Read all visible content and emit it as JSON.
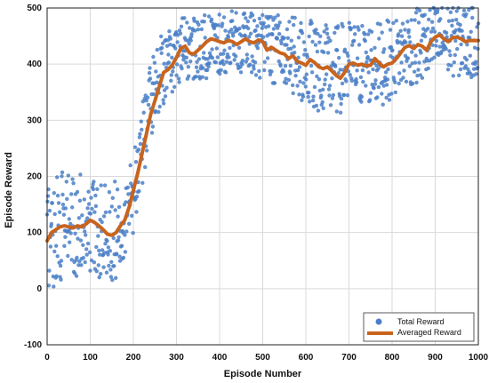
{
  "chart_data": {
    "type": "scatter",
    "title": "",
    "xlabel": "Episode Number",
    "ylabel": "Episode Reward",
    "xlim": [
      0,
      1000
    ],
    "ylim": [
      -100,
      500
    ],
    "xticks": [
      0,
      100,
      200,
      300,
      400,
      500,
      600,
      700,
      800,
      900,
      1000
    ],
    "yticks": [
      -100,
      0,
      100,
      200,
      300,
      400,
      500
    ],
    "grid": true,
    "legend_position": "bottom-right",
    "series": [
      {
        "name": "Total Reward",
        "kind": "scatter",
        "color": "#4a7fc7",
        "trend_x": [
          0,
          20,
          40,
          60,
          80,
          100,
          120,
          140,
          160,
          180,
          200,
          210,
          220,
          230,
          240,
          250,
          260,
          280,
          300,
          320,
          340,
          360,
          380,
          400,
          420,
          440,
          460,
          480,
          500,
          520,
          540,
          560,
          580,
          600,
          620,
          640,
          660,
          680,
          700,
          720,
          740,
          760,
          780,
          800,
          820,
          840,
          860,
          880,
          900,
          920,
          940,
          960,
          980,
          1000
        ],
        "trend_y": [
          92,
          108,
          112,
          110,
          112,
          118,
          112,
          95,
          105,
          135,
          175,
          215,
          255,
          300,
          335,
          365,
          385,
          395,
          415,
          425,
          428,
          430,
          432,
          438,
          440,
          438,
          440,
          435,
          432,
          428,
          425,
          418,
          412,
          405,
          398,
          392,
          385,
          392,
          400,
          398,
          402,
          400,
          402,
          410,
          420,
          428,
          432,
          435,
          442,
          445,
          443,
          440,
          440,
          440
        ],
        "spread": [
          75,
          75,
          72,
          70,
          70,
          70,
          70,
          70,
          65,
          55,
          55,
          55,
          55,
          55,
          55,
          50,
          50,
          50,
          45,
          45,
          42,
          42,
          42,
          42,
          42,
          42,
          42,
          42,
          45,
          48,
          50,
          52,
          55,
          55,
          58,
          60,
          60,
          60,
          58,
          58,
          55,
          55,
          55,
          52,
          50,
          50,
          50,
          50,
          48,
          48,
          48,
          48,
          48,
          48
        ],
        "count": 1000,
        "max": 500
      },
      {
        "name": "Averaged Reward",
        "kind": "line",
        "color": "#c8641e",
        "x": [
          0,
          10,
          20,
          30,
          40,
          50,
          60,
          70,
          80,
          90,
          100,
          110,
          120,
          130,
          140,
          150,
          160,
          170,
          180,
          190,
          200,
          210,
          220,
          230,
          240,
          250,
          260,
          270,
          280,
          290,
          300,
          310,
          320,
          330,
          340,
          350,
          360,
          370,
          380,
          390,
          400,
          410,
          420,
          430,
          440,
          450,
          460,
          470,
          480,
          490,
          500,
          510,
          520,
          530,
          540,
          550,
          560,
          570,
          580,
          590,
          600,
          610,
          620,
          630,
          640,
          650,
          660,
          670,
          680,
          690,
          700,
          710,
          720,
          730,
          740,
          750,
          760,
          770,
          780,
          790,
          800,
          810,
          820,
          830,
          840,
          850,
          860,
          870,
          880,
          890,
          900,
          910,
          920,
          930,
          940,
          950,
          960,
          970,
          980,
          990,
          1000
        ],
        "y": [
          85,
          100,
          105,
          110,
          112,
          110,
          108,
          112,
          110,
          115,
          122,
          118,
          112,
          105,
          97,
          95,
          100,
          112,
          122,
          145,
          175,
          205,
          240,
          275,
          310,
          335,
          360,
          385,
          390,
          398,
          412,
          428,
          432,
          420,
          418,
          425,
          432,
          440,
          445,
          443,
          440,
          438,
          442,
          440,
          435,
          440,
          445,
          440,
          438,
          443,
          440,
          425,
          430,
          425,
          420,
          418,
          410,
          415,
          405,
          402,
          398,
          408,
          403,
          395,
          392,
          395,
          388,
          380,
          375,
          385,
          400,
          402,
          398,
          400,
          397,
          398,
          410,
          402,
          395,
          400,
          402,
          410,
          420,
          430,
          433,
          428,
          435,
          432,
          425,
          440,
          448,
          452,
          445,
          440,
          447,
          448,
          445,
          440,
          442,
          442,
          442
        ]
      }
    ]
  }
}
